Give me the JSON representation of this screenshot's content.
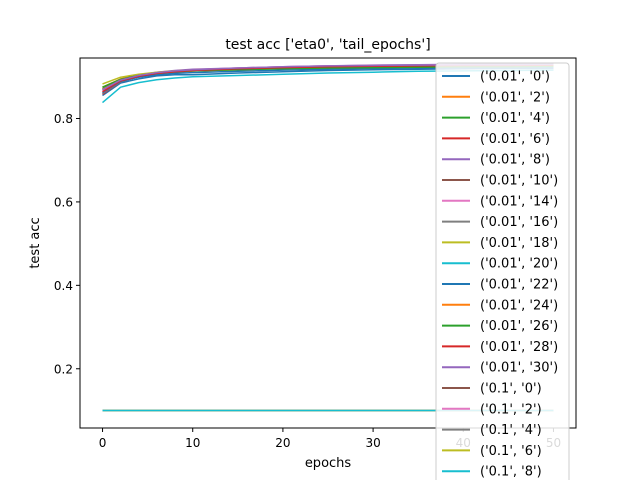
{
  "chart_data": {
    "type": "line",
    "title": "test acc ['eta0', 'tail_epochs']",
    "xlabel": "epochs",
    "ylabel": "test acc",
    "xlim": [
      -2.5,
      52.5
    ],
    "ylim": [
      0.058,
      0.945
    ],
    "xticks": [
      0,
      10,
      20,
      30,
      40,
      50
    ],
    "yticks": [
      0.2,
      0.4,
      0.6,
      0.8
    ],
    "xtick_labels": [
      "0",
      "10",
      "20",
      "30",
      "40",
      "50"
    ],
    "ytick_labels": [
      "0.2",
      "0.4",
      "0.6",
      "0.8"
    ],
    "grid": false,
    "legend_position": "right (overflowing the plot area)",
    "x": [
      0,
      2,
      4,
      6,
      8,
      10,
      15,
      20,
      25,
      30,
      35,
      40,
      45,
      50
    ],
    "series": [
      {
        "name": "('0.01', '0')",
        "color": "#1f77b4",
        "values": [
          0.855,
          0.885,
          0.895,
          0.902,
          0.905,
          0.905,
          0.909,
          0.912,
          0.915,
          0.917,
          0.918,
          0.919,
          0.92,
          0.92
        ]
      },
      {
        "name": "('0.01', '2')",
        "color": "#ff7f0e",
        "values": [
          0.875,
          0.895,
          0.905,
          0.91,
          0.913,
          0.915,
          0.918,
          0.92,
          0.922,
          0.923,
          0.924,
          0.925,
          0.925,
          0.926
        ]
      },
      {
        "name": "('0.01', '4')",
        "color": "#2ca02c",
        "values": [
          0.872,
          0.893,
          0.903,
          0.909,
          0.912,
          0.914,
          0.917,
          0.92,
          0.921,
          0.922,
          0.923,
          0.924,
          0.924,
          0.925
        ]
      },
      {
        "name": "('0.01', '6')",
        "color": "#d62728",
        "values": [
          0.858,
          0.888,
          0.9,
          0.907,
          0.911,
          0.914,
          0.918,
          0.921,
          0.923,
          0.925,
          0.926,
          0.927,
          0.927,
          0.928
        ]
      },
      {
        "name": "('0.01', '8')",
        "color": "#9467bd",
        "values": [
          0.868,
          0.892,
          0.904,
          0.911,
          0.915,
          0.918,
          0.921,
          0.924,
          0.926,
          0.928,
          0.929,
          0.93,
          0.93,
          0.93
        ]
      },
      {
        "name": "('0.01', '10')",
        "color": "#8c564b",
        "values": [
          0.87,
          0.893,
          0.904,
          0.91,
          0.914,
          0.917,
          0.92,
          0.923,
          0.925,
          0.926,
          0.927,
          0.928,
          0.928,
          0.929
        ]
      },
      {
        "name": "('0.01', '14')",
        "color": "#e377c2",
        "values": [
          0.866,
          0.891,
          0.903,
          0.91,
          0.914,
          0.917,
          0.921,
          0.924,
          0.926,
          0.927,
          0.928,
          0.929,
          0.929,
          0.93
        ]
      },
      {
        "name": "('0.01', '16')",
        "color": "#7f7f7f",
        "values": [
          0.86,
          0.888,
          0.9,
          0.907,
          0.911,
          0.914,
          0.918,
          0.921,
          0.923,
          0.925,
          0.926,
          0.927,
          0.927,
          0.928
        ]
      },
      {
        "name": "('0.01', '18')",
        "color": "#bcbd22",
        "values": [
          0.883,
          0.899,
          0.906,
          0.911,
          0.914,
          0.916,
          0.919,
          0.921,
          0.923,
          0.924,
          0.925,
          0.926,
          0.926,
          0.927
        ]
      },
      {
        "name": "('0.01', '20')",
        "color": "#17becf",
        "values": [
          0.838,
          0.875,
          0.886,
          0.893,
          0.897,
          0.9,
          0.903,
          0.906,
          0.909,
          0.911,
          0.913,
          0.914,
          0.915,
          0.916
        ]
      },
      {
        "name": "('0.01', '22')",
        "color": "#1f77b4",
        "values": [
          0.862,
          0.889,
          0.899,
          0.905,
          0.908,
          0.91,
          0.913,
          0.916,
          0.918,
          0.92,
          0.921,
          0.922,
          0.922,
          0.923
        ]
      },
      {
        "name": "('0.01', '24')",
        "color": "#ff7f0e",
        "values": [
          0.87,
          0.892,
          0.902,
          0.908,
          0.912,
          0.914,
          0.917,
          0.92,
          0.922,
          0.923,
          0.924,
          0.925,
          0.925,
          0.926
        ]
      },
      {
        "name": "('0.01', '26')",
        "color": "#2ca02c",
        "values": [
          0.875,
          0.894,
          0.903,
          0.909,
          0.912,
          0.914,
          0.917,
          0.919,
          0.921,
          0.922,
          0.923,
          0.924,
          0.924,
          0.925
        ]
      },
      {
        "name": "('0.01', '28')",
        "color": "#d62728",
        "values": [
          0.864,
          0.89,
          0.901,
          0.908,
          0.912,
          0.915,
          0.919,
          0.922,
          0.924,
          0.925,
          0.926,
          0.927,
          0.927,
          0.928
        ]
      },
      {
        "name": "('0.01', '30')",
        "color": "#9467bd",
        "values": [
          0.869,
          0.892,
          0.903,
          0.91,
          0.914,
          0.917,
          0.921,
          0.924,
          0.926,
          0.927,
          0.928,
          0.929,
          0.929,
          0.93
        ]
      },
      {
        "name": "('0.1', '0')",
        "color": "#8c564b",
        "values": [
          0.1,
          0.1,
          0.1,
          0.1,
          0.1,
          0.1,
          0.1,
          0.1,
          0.1,
          0.1,
          0.1,
          0.1,
          0.1,
          0.1
        ]
      },
      {
        "name": "('0.1', '2')",
        "color": "#e377c2",
        "values": [
          0.1,
          0.1,
          0.1,
          0.1,
          0.1,
          0.1,
          0.1,
          0.1,
          0.1,
          0.1,
          0.1,
          0.1,
          0.1,
          0.1
        ]
      },
      {
        "name": "('0.1', '4')",
        "color": "#7f7f7f",
        "values": [
          0.1,
          0.1,
          0.1,
          0.1,
          0.1,
          0.1,
          0.1,
          0.1,
          0.1,
          0.1,
          0.1,
          0.1,
          0.1,
          0.1
        ]
      },
      {
        "name": "('0.1', '6')",
        "color": "#bcbd22",
        "values": [
          0.1,
          0.1,
          0.1,
          0.1,
          0.1,
          0.1,
          0.1,
          0.1,
          0.1,
          0.1,
          0.1,
          0.1,
          0.1,
          0.1
        ]
      },
      {
        "name": "('0.1', '8')",
        "color": "#17becf",
        "values": [
          0.1,
          0.1,
          0.1,
          0.1,
          0.1,
          0.1,
          0.1,
          0.1,
          0.1,
          0.1,
          0.1,
          0.1,
          0.1,
          0.1
        ]
      }
    ]
  }
}
